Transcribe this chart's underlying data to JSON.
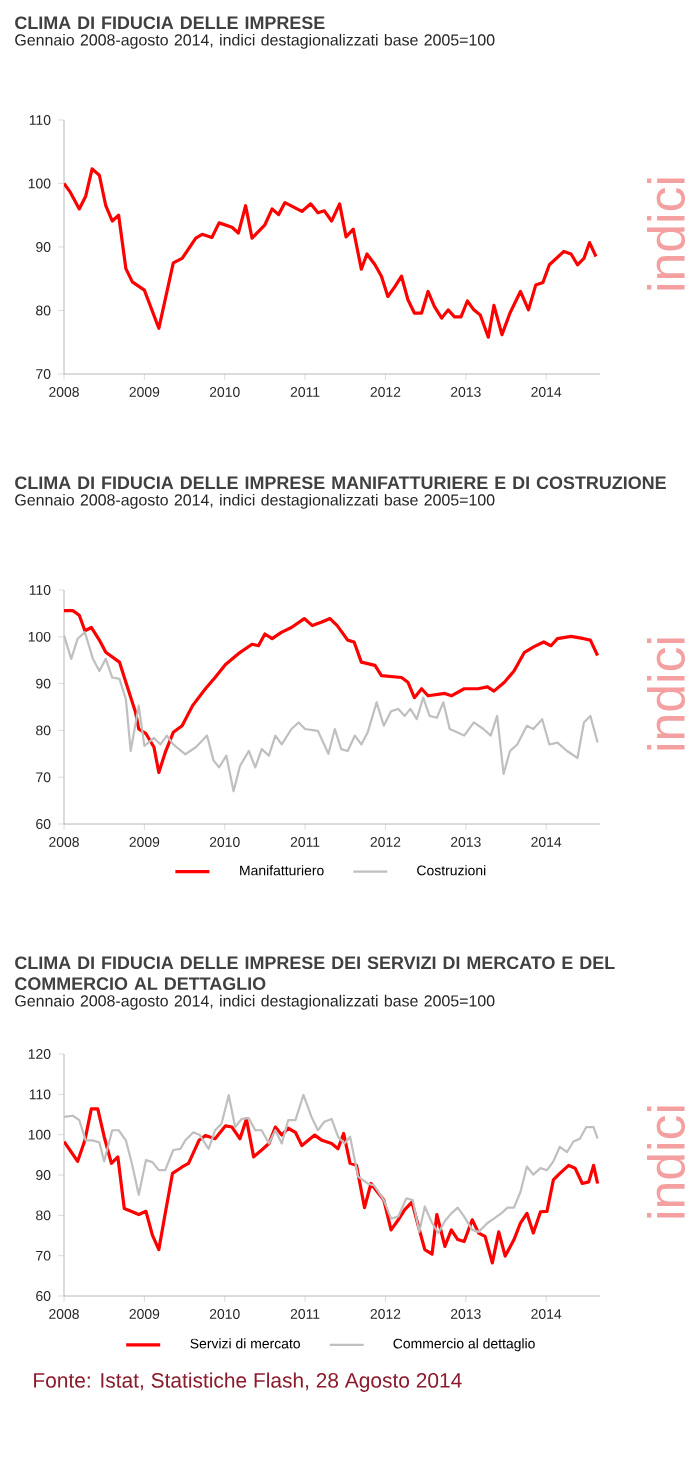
{
  "chart_data": [
    {
      "type": "line",
      "title": "CLIMA DI FIDUCIA DELLE IMPRESE",
      "subtitle": "Gennaio 2008-agosto 2014, indici destagionalizzati base 2005=100",
      "xlim": [
        2008,
        2014.67
      ],
      "xticks": [
        2008,
        2009,
        2010,
        2011,
        2012,
        2013,
        2014
      ],
      "ylim": [
        70,
        110
      ],
      "yticks": [
        70,
        80,
        90,
        100,
        110
      ],
      "annotations": [
        "indici"
      ],
      "series": [
        {
          "color": "#ff0000",
          "x": [
            2008,
            2008.08,
            2008.19,
            2008.27,
            2008.35,
            2008.44,
            2008.52,
            2008.6,
            2008.68,
            2008.77,
            2008.85,
            2009.0,
            2009.18,
            2009.36,
            2009.47,
            2009.64,
            2009.72,
            2009.84,
            2009.93,
            2010.09,
            2010.17,
            2010.26,
            2010.34,
            2010.5,
            2010.59,
            2010.67,
            2010.75,
            2010.96,
            2011.07,
            2011.16,
            2011.24,
            2011.33,
            2011.43,
            2011.51,
            2011.6,
            2011.7,
            2011.77,
            2011.87,
            2011.95,
            2012.03,
            2012.12,
            2012.2,
            2012.28,
            2012.36,
            2012.45,
            2012.53,
            2012.61,
            2012.7,
            2012.78,
            2012.86,
            2012.94,
            2013.02,
            2013.1,
            2013.18,
            2013.28,
            2013.35,
            2013.45,
            2013.55,
            2013.68,
            2013.78,
            2013.87,
            2013.96,
            2014.04,
            2014.22,
            2014.31,
            2014.39,
            2014.47,
            2014.54,
            2014.62
          ],
          "values": [
            100,
            98.6,
            96,
            98,
            102.3,
            101.3,
            96.5,
            94.1,
            95,
            86.6,
            84.5,
            83.2,
            77.2,
            87.5,
            88.2,
            91.4,
            92,
            91.5,
            93.8,
            93.1,
            92.2,
            96.5,
            91.4,
            93.5,
            96,
            95.1,
            97,
            95.6,
            96.8,
            95.4,
            95.7,
            94.1,
            96.8,
            91.6,
            92.8,
            86.5,
            88.9,
            87.2,
            85.4,
            82.2,
            83.8,
            85.4,
            81.7,
            79.6,
            79.6,
            83,
            80.6,
            78.8,
            80.1,
            79,
            79,
            81.5,
            80.1,
            79.3,
            75.8,
            80.8,
            76.2,
            79.6,
            83,
            80.1,
            84,
            84.4,
            87.2,
            89.3,
            88.9,
            87.2,
            88.2,
            90.7,
            88.5
          ]
        }
      ]
    },
    {
      "type": "line",
      "title": "CLIMA DI FIDUCIA DELLE IMPRESE MANIFATTURIERE E DI COSTRUZIONE",
      "subtitle": "Gennaio 2008-agosto 2014, indici destagionalizzati base 2005=100",
      "xlim": [
        2008,
        2014.67
      ],
      "xticks": [
        2008,
        2009,
        2010,
        2011,
        2012,
        2013,
        2014
      ],
      "ylim": [
        60,
        110
      ],
      "yticks": [
        60,
        70,
        80,
        90,
        100,
        110
      ],
      "legend": "bottom",
      "annotations": [
        "indici"
      ],
      "series": [
        {
          "name": "Manifatturiero",
          "color": "#ff0000",
          "x": [
            2008,
            2008.11,
            2008.19,
            2008.26,
            2008.34,
            2008.44,
            2008.52,
            2008.69,
            2008.77,
            2008.89,
            2008.93,
            2009.02,
            2009.12,
            2009.18,
            2009.26,
            2009.36,
            2009.47,
            2009.6,
            2009.76,
            2009.88,
            2010.01,
            2010.17,
            2010.34,
            2010.42,
            2010.5,
            2010.59,
            2010.71,
            2010.83,
            2010.99,
            2011.09,
            2011.2,
            2011.31,
            2011.4,
            2011.53,
            2011.61,
            2011.7,
            2011.87,
            2011.95,
            2012.2,
            2012.28,
            2012.36,
            2012.45,
            2012.53,
            2012.74,
            2012.82,
            2012.98,
            2013.15,
            2013.27,
            2013.35,
            2013.48,
            2013.6,
            2013.73,
            2013.85,
            2013.97,
            2014.06,
            2014.14,
            2014.31,
            2014.47,
            2014.55,
            2014.64
          ],
          "values": [
            105.6,
            105.6,
            104.6,
            101.3,
            102,
            99.3,
            96.7,
            94.6,
            90.3,
            83.9,
            80.3,
            79.3,
            76.4,
            71,
            75.3,
            79.6,
            81,
            85.3,
            88.9,
            91.3,
            94.1,
            96.4,
            98.4,
            98.1,
            100.6,
            99.6,
            101,
            102,
            103.9,
            102.4,
            103.1,
            103.9,
            102.4,
            99.3,
            98.9,
            94.6,
            93.9,
            91.7,
            91.3,
            90.3,
            87,
            88.9,
            87.4,
            87.9,
            87.4,
            88.9,
            88.9,
            89.3,
            88.4,
            90.3,
            92.7,
            96.7,
            97.9,
            98.9,
            98.1,
            99.6,
            100.1,
            99.6,
            99.3,
            96
          ]
        },
        {
          "name": "Costruzioni",
          "color": "#bfbfbf",
          "x": [
            2008,
            2008.09,
            2008.17,
            2008.26,
            2008.36,
            2008.44,
            2008.52,
            2008.6,
            2008.69,
            2008.77,
            2008.83,
            2008.93,
            2009.0,
            2009.12,
            2009.2,
            2009.28,
            2009.36,
            2009.51,
            2009.64,
            2009.78,
            2009.86,
            2009.93,
            2010.02,
            2010.11,
            2010.19,
            2010.3,
            2010.38,
            2010.46,
            2010.55,
            2010.63,
            2010.71,
            2010.83,
            2010.92,
            2011.0,
            2011.16,
            2011.29,
            2011.37,
            2011.45,
            2011.53,
            2011.62,
            2011.7,
            2011.78,
            2011.89,
            2011.98,
            2012.07,
            2012.16,
            2012.24,
            2012.31,
            2012.39,
            2012.47,
            2012.55,
            2012.64,
            2012.72,
            2012.8,
            2012.98,
            2013.1,
            2013.22,
            2013.31,
            2013.39,
            2013.47,
            2013.55,
            2013.64,
            2013.76,
            2013.84,
            2013.95,
            2014.04,
            2014.14,
            2014.26,
            2014.39,
            2014.47,
            2014.55,
            2014.64
          ],
          "values": [
            100.3,
            95.3,
            99.6,
            101,
            95.3,
            92.7,
            95.3,
            91.3,
            91,
            86.7,
            75.6,
            85.3,
            76.7,
            78.4,
            77,
            78.9,
            77,
            74.9,
            76.4,
            78.9,
            73.6,
            72.1,
            74.6,
            67,
            72.4,
            75.6,
            72.1,
            76,
            74.6,
            78.9,
            77,
            80.3,
            81.7,
            80.3,
            79.9,
            75,
            80.3,
            76,
            75.6,
            78.9,
            77,
            79.6,
            86,
            81,
            84.1,
            84.6,
            83.1,
            84.6,
            82.4,
            87,
            83.1,
            82.7,
            86,
            80.3,
            78.9,
            81.7,
            80.3,
            78.9,
            83.1,
            70.7,
            75.6,
            77,
            81,
            80.3,
            82.4,
            77,
            77.4,
            75.6,
            74.1,
            81.7,
            83.1,
            77.4
          ]
        }
      ]
    },
    {
      "type": "line",
      "title": "CLIMA DI FIDUCIA DELLE IMPRESE DEI SERVIZI DI MERCATO E DEL COMMERCIO AL DETTAGLIO",
      "subtitle": "Gennaio 2008-agosto 2014, indici destagionalizzati base 2005=100",
      "xlim": [
        2008,
        2014.67
      ],
      "xticks": [
        2008,
        2009,
        2010,
        2011,
        2012,
        2013,
        2014
      ],
      "ylim": [
        60,
        120
      ],
      "yticks": [
        60,
        70,
        80,
        90,
        100,
        110,
        120
      ],
      "legend": "bottom",
      "annotations": [
        "indici",
        "Fonte: Istat, Statistiche Flash, 28 Agosto 2014"
      ],
      "series": [
        {
          "name": "Servizi di mercato",
          "color": "#ff0000",
          "x": [
            2008,
            2008.09,
            2008.17,
            2008.26,
            2008.34,
            2008.42,
            2008.5,
            2008.59,
            2008.67,
            2008.75,
            2008.85,
            2008.93,
            2009.02,
            2009.1,
            2009.18,
            2009.26,
            2009.35,
            2009.47,
            2009.55,
            2009.68,
            2009.76,
            2009.88,
            2010.01,
            2010.09,
            2010.19,
            2010.27,
            2010.36,
            2010.46,
            2010.55,
            2010.63,
            2010.71,
            2010.79,
            2010.88,
            2010.96,
            2011.12,
            2011.21,
            2011.33,
            2011.41,
            2011.48,
            2011.56,
            2011.64,
            2011.74,
            2011.82,
            2011.9,
            2011.98,
            2012.07,
            2012.16,
            2012.24,
            2012.33,
            2012.41,
            2012.49,
            2012.58,
            2012.64,
            2012.74,
            2012.82,
            2012.9,
            2012.98,
            2013.08,
            2013.16,
            2013.24,
            2013.33,
            2013.41,
            2013.49,
            2013.6,
            2013.68,
            2013.76,
            2013.84,
            2013.93,
            2014.01,
            2014.09,
            2014.17,
            2014.28,
            2014.36,
            2014.45,
            2014.53,
            2014.59,
            2014.64
          ],
          "values": [
            98.3,
            95.7,
            93.4,
            98.6,
            106.4,
            106.4,
            99.5,
            92.9,
            94.5,
            81.7,
            80.9,
            80.2,
            81,
            75.1,
            71.5,
            80.5,
            90.4,
            92,
            92.9,
            98.6,
            99.8,
            99,
            102.2,
            101.9,
            99,
            103.9,
            94.5,
            96.2,
            97.8,
            101.9,
            99.9,
            101.6,
            100.6,
            97.3,
            99.9,
            98.6,
            97.8,
            96.5,
            100.3,
            92.9,
            92.4,
            81.9,
            87.9,
            85.8,
            83.8,
            76.4,
            78.9,
            81.4,
            83.3,
            77.3,
            71.5,
            70.4,
            80.2,
            72.3,
            76.4,
            74,
            73.5,
            78.9,
            75.6,
            74.8,
            68.2,
            75.9,
            69.9,
            74,
            78.1,
            80.5,
            75.6,
            80.9,
            81,
            88.8,
            90.4,
            92.4,
            91.7,
            87.9,
            88.3,
            92.4,
            87.9
          ]
        },
        {
          "name": "Commercio al dettaglio",
          "color": "#bfbfbf",
          "x": [
            2008,
            2008.11,
            2008.19,
            2008.27,
            2008.35,
            2008.44,
            2008.5,
            2008.6,
            2008.68,
            2008.77,
            2008.85,
            2008.93,
            2009.02,
            2009.1,
            2009.18,
            2009.26,
            2009.36,
            2009.45,
            2009.51,
            2009.61,
            2009.69,
            2009.8,
            2009.88,
            2009.96,
            2010.05,
            2010.13,
            2010.21,
            2010.3,
            2010.38,
            2010.46,
            2010.55,
            2010.63,
            2010.71,
            2010.79,
            2010.88,
            2010.98,
            2011.08,
            2011.16,
            2011.24,
            2011.33,
            2011.41,
            2011.49,
            2011.56,
            2011.66,
            2011.78,
            2011.86,
            2011.98,
            2012.07,
            2012.16,
            2012.26,
            2012.34,
            2012.42,
            2012.49,
            2012.58,
            2012.66,
            2012.74,
            2012.82,
            2012.9,
            2012.98,
            2013.08,
            2013.16,
            2013.27,
            2013.35,
            2013.44,
            2013.52,
            2013.6,
            2013.68,
            2013.76,
            2013.84,
            2013.93,
            2014.01,
            2014.09,
            2014.17,
            2014.26,
            2014.34,
            2014.42,
            2014.5,
            2014.59,
            2014.64
          ],
          "values": [
            104.4,
            104.7,
            103.6,
            98.6,
            98.6,
            98.1,
            93.4,
            101.1,
            101.1,
            98.6,
            92.4,
            85.1,
            93.7,
            93.2,
            91.2,
            91.2,
            96.2,
            96.5,
            98.6,
            100.6,
            99.9,
            96.5,
            101.1,
            102.7,
            109.8,
            101.9,
            103.9,
            104.1,
            101.1,
            101.1,
            97.8,
            101.1,
            97.8,
            103.6,
            103.6,
            109.9,
            104.4,
            101.1,
            103.2,
            103.9,
            99.5,
            97.8,
            99.5,
            89.6,
            87.9,
            87.4,
            83.8,
            79.2,
            79.7,
            84.2,
            83.8,
            75.9,
            82.2,
            78.1,
            75.6,
            78.6,
            80.5,
            81.9,
            79.7,
            76.4,
            75.9,
            78.1,
            79.2,
            80.5,
            81.9,
            81.9,
            85.8,
            92.1,
            90.1,
            91.7,
            91.2,
            93.4,
            97,
            95.7,
            98.3,
            99,
            101.9,
            101.9,
            99
          ]
        }
      ]
    }
  ]
}
